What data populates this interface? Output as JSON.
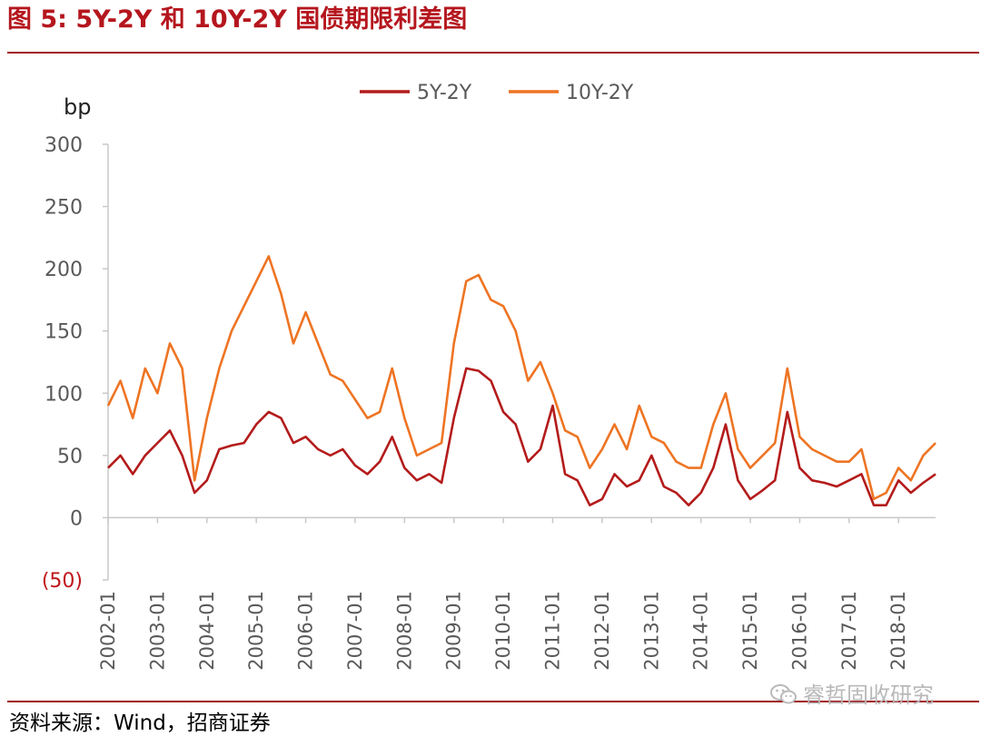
{
  "header": {
    "title": "图 5:  5Y-2Y 和 10Y-2Y 国债期限利差图"
  },
  "footer": {
    "source": "资料来源：Wind，招商证券",
    "watermark": "睿哲固收研究",
    "watermark_icon": "wechat-icon"
  },
  "colors": {
    "title": "#b5161e",
    "series_5y2y": "#b41b1b",
    "series_10y2y": "#ee7423",
    "negative_label": "#c0161b"
  },
  "chart_data": {
    "type": "line",
    "ylabel": "bp",
    "ylim": [
      -50,
      300
    ],
    "yticks": [
      -50,
      0,
      50,
      100,
      150,
      200,
      250,
      300
    ],
    "ytick_labels": [
      "(50)",
      "0",
      "50",
      "100",
      "150",
      "200",
      "250",
      "300"
    ],
    "xlim": [
      "2002-01",
      "2018-10"
    ],
    "xtick_labels": [
      "2002-01",
      "2003-01",
      "2004-01",
      "2005-01",
      "2006-01",
      "2007-01",
      "2008-01",
      "2009-01",
      "2010-01",
      "2011-01",
      "2012-01",
      "2013-01",
      "2014-01",
      "2015-01",
      "2016-01",
      "2017-01",
      "2018-01"
    ],
    "grid": false,
    "legend_position": "top",
    "series": [
      {
        "name": "5Y-2Y",
        "color": "#b41b1b",
        "x": [
          "2002-01",
          "2002-04",
          "2002-07",
          "2002-10",
          "2003-01",
          "2003-04",
          "2003-07",
          "2003-10",
          "2004-01",
          "2004-04",
          "2004-07",
          "2004-10",
          "2005-01",
          "2005-04",
          "2005-07",
          "2005-10",
          "2006-01",
          "2006-04",
          "2006-07",
          "2006-10",
          "2007-01",
          "2007-04",
          "2007-07",
          "2007-10",
          "2008-01",
          "2008-04",
          "2008-07",
          "2008-10",
          "2009-01",
          "2009-04",
          "2009-07",
          "2009-10",
          "2010-01",
          "2010-04",
          "2010-07",
          "2010-10",
          "2011-01",
          "2011-04",
          "2011-07",
          "2011-10",
          "2012-01",
          "2012-04",
          "2012-07",
          "2012-10",
          "2013-01",
          "2013-04",
          "2013-07",
          "2013-10",
          "2014-01",
          "2014-04",
          "2014-07",
          "2014-10",
          "2015-01",
          "2015-04",
          "2015-07",
          "2015-10",
          "2016-01",
          "2016-04",
          "2016-07",
          "2016-10",
          "2017-01",
          "2017-04",
          "2017-07",
          "2017-10",
          "2018-01",
          "2018-04",
          "2018-07",
          "2018-10"
        ],
        "values": [
          40,
          50,
          35,
          50,
          60,
          70,
          50,
          20,
          30,
          55,
          58,
          60,
          75,
          85,
          80,
          60,
          65,
          55,
          50,
          55,
          42,
          35,
          45,
          65,
          40,
          30,
          35,
          28,
          80,
          120,
          118,
          110,
          85,
          75,
          45,
          55,
          90,
          35,
          30,
          10,
          15,
          35,
          25,
          30,
          50,
          25,
          20,
          10,
          20,
          40,
          75,
          30,
          15,
          22,
          30,
          85,
          40,
          30,
          28,
          25,
          30,
          35,
          10,
          10,
          30,
          20,
          28,
          35
        ]
      },
      {
        "name": "10Y-2Y",
        "color": "#ee7423",
        "x": [
          "2002-01",
          "2002-04",
          "2002-07",
          "2002-10",
          "2003-01",
          "2003-04",
          "2003-07",
          "2003-10",
          "2004-01",
          "2004-04",
          "2004-07",
          "2004-10",
          "2005-01",
          "2005-04",
          "2005-07",
          "2005-10",
          "2006-01",
          "2006-04",
          "2006-07",
          "2006-10",
          "2007-01",
          "2007-04",
          "2007-07",
          "2007-10",
          "2008-01",
          "2008-04",
          "2008-07",
          "2008-10",
          "2009-01",
          "2009-04",
          "2009-07",
          "2009-10",
          "2010-01",
          "2010-04",
          "2010-07",
          "2010-10",
          "2011-01",
          "2011-04",
          "2011-07",
          "2011-10",
          "2012-01",
          "2012-04",
          "2012-07",
          "2012-10",
          "2013-01",
          "2013-04",
          "2013-07",
          "2013-10",
          "2014-01",
          "2014-04",
          "2014-07",
          "2014-10",
          "2015-01",
          "2015-04",
          "2015-07",
          "2015-10",
          "2016-01",
          "2016-04",
          "2016-07",
          "2016-10",
          "2017-01",
          "2017-04",
          "2017-07",
          "2017-10",
          "2018-01",
          "2018-04",
          "2018-07",
          "2018-10"
        ],
        "values": [
          90,
          110,
          80,
          120,
          100,
          140,
          120,
          30,
          80,
          120,
          150,
          170,
          190,
          210,
          180,
          140,
          165,
          140,
          115,
          110,
          95,
          80,
          85,
          120,
          80,
          50,
          55,
          60,
          140,
          190,
          195,
          175,
          170,
          150,
          110,
          125,
          100,
          70,
          65,
          40,
          55,
          75,
          55,
          90,
          65,
          60,
          45,
          40,
          40,
          75,
          100,
          55,
          40,
          50,
          60,
          120,
          65,
          55,
          50,
          45,
          45,
          55,
          15,
          20,
          40,
          30,
          50,
          60
        ]
      }
    ]
  }
}
